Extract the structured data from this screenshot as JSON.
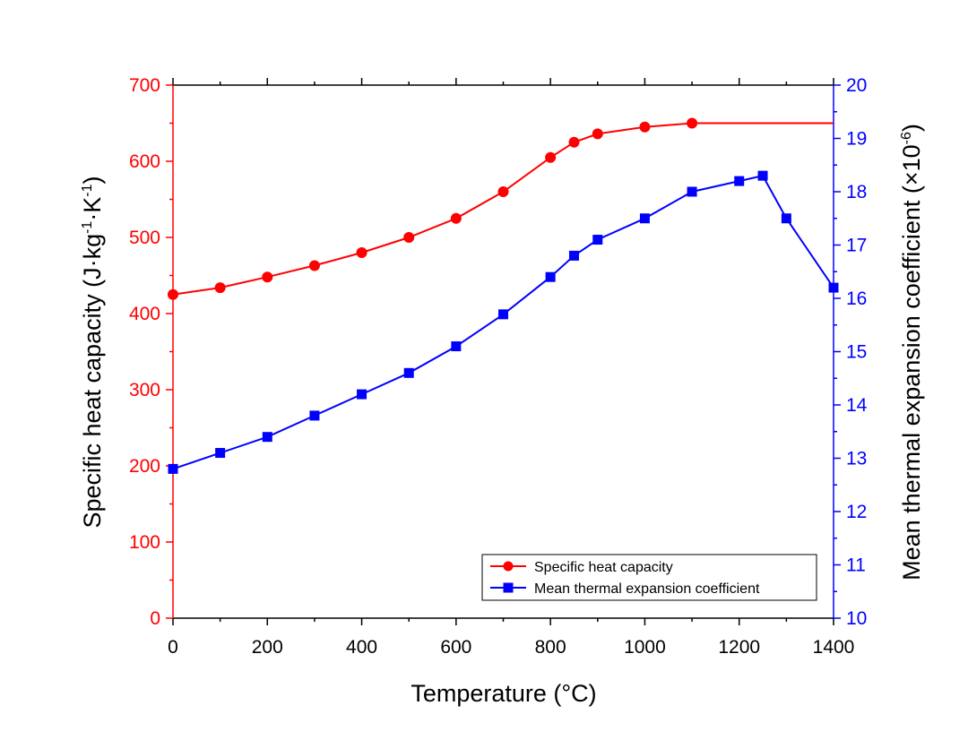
{
  "chart_data": {
    "type": "line",
    "xlabel": "Temperature (°C)",
    "xlim": [
      0,
      1400
    ],
    "xticks": [
      0,
      200,
      400,
      600,
      800,
      1000,
      1200,
      1400
    ],
    "y_left": {
      "label": "Specific heat capacity (J·kg",
      "label_sup1": "-1",
      "label_mid": "·K",
      "label_sup2": "-1",
      "label_end": ")",
      "lim": [
        0,
        700
      ],
      "ticks": [
        0,
        100,
        200,
        300,
        400,
        500,
        600,
        700
      ],
      "color": "#ff0000"
    },
    "y_right": {
      "label": "Mean thermal expansion coefficient (×10",
      "label_sup": "-6",
      "label_end": ")",
      "lim": [
        10,
        20
      ],
      "ticks": [
        10,
        11,
        12,
        13,
        14,
        15,
        16,
        17,
        18,
        19,
        20
      ],
      "color": "#0000ff"
    },
    "series": [
      {
        "name": "Specific heat capacity",
        "axis": "left",
        "marker": "circle",
        "color": "#ff0000",
        "x": [
          0,
          100,
          200,
          300,
          400,
          500,
          600,
          700,
          800,
          850,
          900,
          1000,
          1100
        ],
        "values": [
          425,
          434,
          448,
          463,
          480,
          500,
          525,
          560,
          605,
          625,
          636,
          645,
          650
        ],
        "extend_to": 1400
      },
      {
        "name": "Mean thermal expansion coefficient",
        "axis": "right",
        "marker": "square",
        "color": "#0000ff",
        "x": [
          0,
          100,
          200,
          300,
          400,
          500,
          600,
          700,
          800,
          850,
          900,
          1000,
          1100,
          1200,
          1250,
          1300,
          1400
        ],
        "values": [
          12.8,
          13.1,
          13.4,
          13.8,
          14.2,
          14.6,
          15.1,
          15.7,
          16.4,
          16.8,
          17.1,
          17.5,
          18.0,
          18.2,
          18.3,
          17.5,
          16.2
        ]
      }
    ],
    "legend_position": "bottom-right"
  }
}
